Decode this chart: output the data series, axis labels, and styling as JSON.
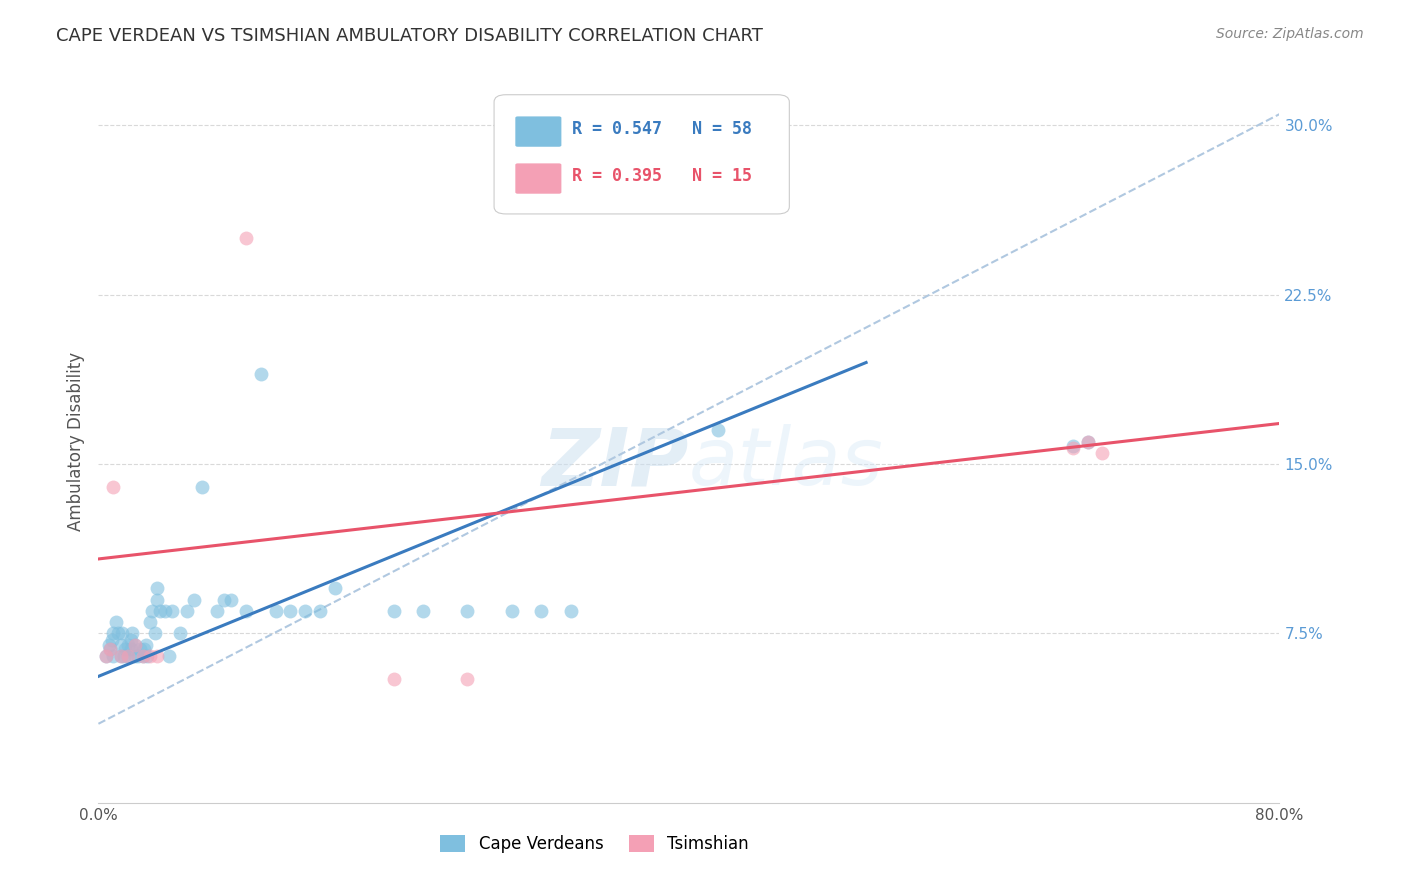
{
  "title": "CAPE VERDEAN VS TSIMSHIAN AMBULATORY DISABILITY CORRELATION CHART",
  "source": "Source: ZipAtlas.com",
  "ylabel": "Ambulatory Disability",
  "xlim": [
    0.0,
    0.8
  ],
  "ylim": [
    0.0,
    0.32
  ],
  "xticks": [
    0.0,
    0.1,
    0.2,
    0.3,
    0.4,
    0.5,
    0.6,
    0.7,
    0.8
  ],
  "xticklabels": [
    "0.0%",
    "",
    "",
    "",
    "",
    "",
    "",
    "",
    "80.0%"
  ],
  "yticks": [
    0.075,
    0.15,
    0.225,
    0.3
  ],
  "yticklabels": [
    "7.5%",
    "15.0%",
    "22.5%",
    "30.0%"
  ],
  "blue_R": "0.547",
  "blue_N": "58",
  "pink_R": "0.395",
  "pink_N": "15",
  "blue_color": "#7fbfdf",
  "pink_color": "#f4a0b5",
  "blue_line_color": "#3a7bbf",
  "pink_line_color": "#e8536a",
  "legend_blue_label": "Cape Verdeans",
  "legend_pink_label": "Tsimshian",
  "watermark_zip": "ZIP",
  "watermark_atlas": "atlas",
  "blue_scatter_x": [
    0.005,
    0.007,
    0.008,
    0.009,
    0.01,
    0.01,
    0.012,
    0.013,
    0.015,
    0.015,
    0.016,
    0.017,
    0.018,
    0.02,
    0.02,
    0.022,
    0.022,
    0.023,
    0.025,
    0.025,
    0.027,
    0.028,
    0.03,
    0.031,
    0.032,
    0.033,
    0.035,
    0.036,
    0.038,
    0.04,
    0.04,
    0.042,
    0.045,
    0.048,
    0.05,
    0.055,
    0.06,
    0.065,
    0.07,
    0.08,
    0.085,
    0.09,
    0.1,
    0.11,
    0.12,
    0.13,
    0.14,
    0.15,
    0.16,
    0.2,
    0.22,
    0.25,
    0.28,
    0.3,
    0.32,
    0.42,
    0.66,
    0.67
  ],
  "blue_scatter_y": [
    0.065,
    0.07,
    0.068,
    0.072,
    0.075,
    0.065,
    0.08,
    0.075,
    0.065,
    0.07,
    0.075,
    0.065,
    0.068,
    0.065,
    0.07,
    0.072,
    0.068,
    0.075,
    0.065,
    0.07,
    0.065,
    0.068,
    0.065,
    0.068,
    0.07,
    0.065,
    0.08,
    0.085,
    0.075,
    0.09,
    0.095,
    0.085,
    0.085,
    0.065,
    0.085,
    0.075,
    0.085,
    0.09,
    0.14,
    0.085,
    0.09,
    0.09,
    0.085,
    0.19,
    0.085,
    0.085,
    0.085,
    0.085,
    0.095,
    0.085,
    0.085,
    0.085,
    0.085,
    0.085,
    0.085,
    0.165,
    0.158,
    0.16
  ],
  "pink_scatter_x": [
    0.005,
    0.008,
    0.01,
    0.015,
    0.02,
    0.025,
    0.03,
    0.035,
    0.04,
    0.1,
    0.2,
    0.25,
    0.66,
    0.67,
    0.68
  ],
  "pink_scatter_y": [
    0.065,
    0.068,
    0.14,
    0.065,
    0.065,
    0.07,
    0.065,
    0.065,
    0.065,
    0.25,
    0.055,
    0.055,
    0.157,
    0.16,
    0.155
  ],
  "blue_line_x0": 0.0,
  "blue_line_y0": 0.056,
  "blue_line_x1": 0.52,
  "blue_line_y1": 0.195,
  "pink_line_x0": 0.0,
  "pink_line_y0": 0.108,
  "pink_line_x1": 0.8,
  "pink_line_y1": 0.168,
  "dash_line_x0": 0.0,
  "dash_line_y0": 0.035,
  "dash_line_x1": 0.8,
  "dash_line_y1": 0.305,
  "background_color": "#ffffff",
  "grid_color": "#d5d5d5"
}
